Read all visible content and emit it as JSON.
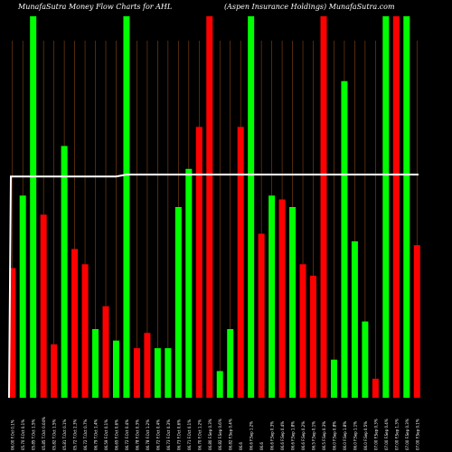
{
  "header": {
    "title_left": "MunafaSutra  Money Flow  Charts for AHL",
    "title_right": "(Aspen  Insurance   Holdings)  MunafaSutra.com"
  },
  "colors": {
    "background": "#000000",
    "up": "#00ff00",
    "down": "#ff0000",
    "gridline": "#8b4513",
    "line": "#ffffff",
    "tick_text": "#ffffff"
  },
  "chart_data": {
    "type": "bar",
    "title": "MunafaSutra  Money Flow  Charts for AHL",
    "subtitle": "(Aspen  Insurance   Holdings)  MunafaSutra.com",
    "xlabel": "",
    "ylabel": "",
    "ylim": [
      0,
      100
    ],
    "grid": "vertical",
    "categories": [
      "06.00 F.Ocl 0.1%",
      "05.70 F.Oct 0.1%",
      "05.85 T.Oct 1.5%",
      "05.85 T.Oct 0.04%",
      "05.82 T.Oct 1.5%",
      "05.81 T.Oct 0.1%",
      "05.72 T.Oct 2.3%",
      "06.72 T.Oct 0.7%",
      "06.79 T.Oct 1.4%",
      "06.59 F.Oct 0.1%",
      "06.65 F.Oct 0.6%",
      "06.72 F.Oct 0.4%",
      "06.78 F.Oct 0.3%",
      "06.78 F.Oct 1.2%",
      "06.72 F.Oct 0.4%",
      "06.73 F.Oct 0.3%",
      "06.73 F.Oct 0.6%",
      "06.71 F.Oct 0.1%",
      "06.70 F.Oct 1.2%",
      "06.80 F.Sep 0.3%",
      "06.82 F.Sep 0.6%",
      "06.82 F.Sep 0.4%",
      "06.6",
      "06.6 F.Sep 1.2%",
      "06.6",
      "06.6 F.Sep 0.3%",
      "06.6 F.Sep 0.4%",
      "06.6 F.Sep 1.8%",
      "06.6 F.Sep 0.2%",
      "06.5 F.Sep 0.1%",
      "06.5 F.Sep 0.3%",
      "06.0 F.Sep 0.8%",
      "06.0 F.Sep 1.8%",
      "06.0 F.Sep 1.1%",
      "06.0 F.Sep 0.5%",
      "07.00 F.Sep 0.3%",
      "07.00 F.Sep 0.4%",
      "07.00 F.Sep 1.3%",
      "07.00 F.Sep 0.3%",
      "07.00 F.Sep 0.1%"
    ],
    "series": [
      {
        "colors": [
          "red",
          "green",
          "green",
          "red",
          "red",
          "green",
          "red",
          "red",
          "green",
          "red",
          "green",
          "green",
          "red",
          "red",
          "green",
          "green",
          "green",
          "green",
          "red",
          "red",
          "green",
          "green",
          "red",
          "green",
          "red",
          "green",
          "red",
          "green",
          "red",
          "red",
          "red",
          "green",
          "green",
          "green",
          "green",
          "red",
          "green",
          "red",
          "green",
          "red"
        ],
        "values": [
          34,
          53,
          100,
          48,
          14,
          66,
          39,
          35,
          18,
          24,
          15,
          100,
          13,
          17,
          13,
          13,
          50,
          60,
          71,
          100,
          7,
          18,
          71,
          100,
          43,
          53,
          52,
          50,
          35,
          32,
          100,
          10,
          83,
          41,
          20,
          5,
          100,
          100,
          100,
          40
        ]
      }
    ],
    "line": {
      "values": [
        58,
        58,
        58,
        58,
        58,
        58,
        58,
        58,
        58,
        58,
        58,
        58.5,
        58.5,
        58.5,
        58.5,
        58.5,
        58.5,
        58.5,
        58.5,
        58.5,
        58.5,
        58.5,
        58.5,
        58.5,
        58.5,
        58.5,
        58.5,
        58.5,
        58.5,
        58.5,
        58.5,
        58.5,
        58.5,
        58.5,
        58.5,
        58.5,
        58.5,
        58.5,
        58.5,
        58.5
      ],
      "start_value": 0
    }
  }
}
